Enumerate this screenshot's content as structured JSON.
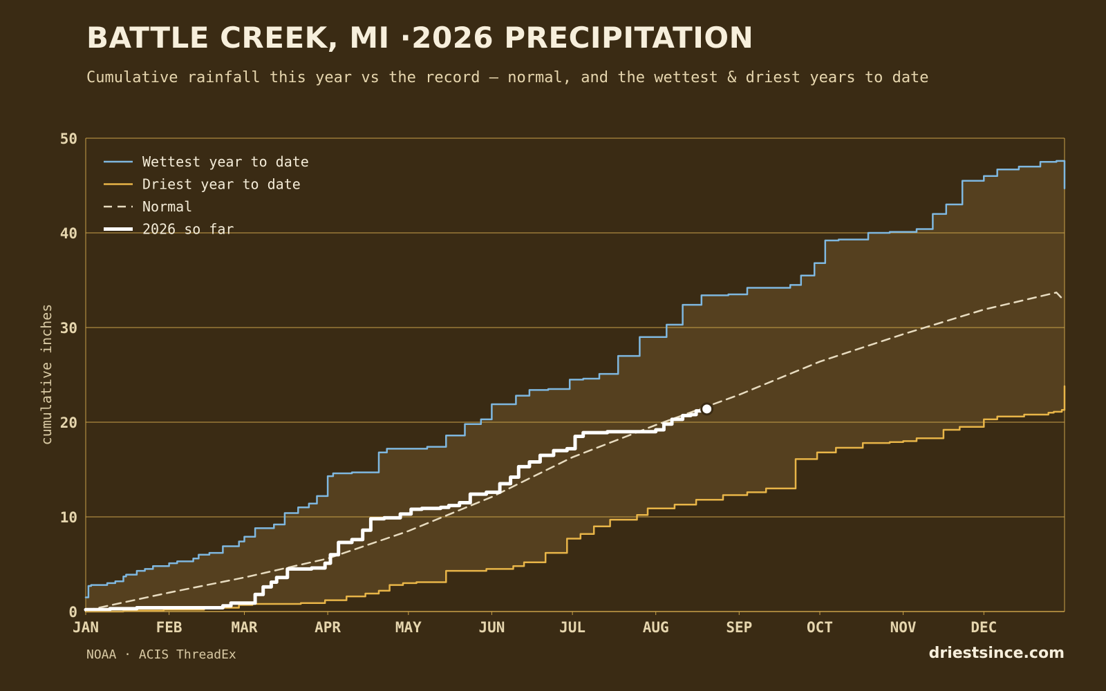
{
  "header": {
    "title": "BATTLE CREEK, MI ·2026 PRECIPITATION",
    "subtitle": "Cumulative rainfall this year vs the record — normal, and the wettest & driest years to date"
  },
  "footer": {
    "source": "NOAA · ACIS ThreadEx",
    "brand": "driestsince.com"
  },
  "colors": {
    "background": "#3a2b14",
    "band_fill": "#55401f",
    "grid": "#c9a24a",
    "wettest": "#7fb8e0",
    "driest": "#e8b548",
    "normal": "#e8dcc0",
    "current": "#ffffff"
  },
  "chart_data": {
    "type": "line",
    "title": "BATTLE CREEK, MI ·2026 PRECIPITATION",
    "ylabel": "cumulative inches",
    "xlabel": "",
    "ylim": [
      0,
      50
    ],
    "xlim": [
      1,
      365
    ],
    "y_ticks": [
      0,
      10,
      20,
      30,
      40,
      50
    ],
    "x_ticks": [
      {
        "label": "JAN",
        "day": 1
      },
      {
        "label": "FEB",
        "day": 32
      },
      {
        "label": "MAR",
        "day": 60
      },
      {
        "label": "APR",
        "day": 91
      },
      {
        "label": "MAY",
        "day": 121
      },
      {
        "label": "JUN",
        "day": 152
      },
      {
        "label": "JUL",
        "day": 182
      },
      {
        "label": "AUG",
        "day": 213
      },
      {
        "label": "SEP",
        "day": 244
      },
      {
        "label": "OCT",
        "day": 274
      },
      {
        "label": "NOV",
        "day": 305
      },
      {
        "label": "DEC",
        "day": 335
      }
    ],
    "grid": true,
    "legend_position": "top-left",
    "band": {
      "between": [
        "Driest year to date",
        "Wettest year to date"
      ],
      "filled": true
    },
    "series": [
      {
        "name": "Wettest year to date",
        "style": "step",
        "x": [
          1,
          2,
          3,
          9,
          12,
          15,
          16,
          20,
          23,
          26,
          32,
          35,
          41,
          43,
          47,
          52,
          58,
          60,
          64,
          71,
          75,
          80,
          84,
          87,
          91,
          93,
          100,
          103,
          106,
          110,
          113,
          121,
          128,
          135,
          142,
          148,
          152,
          161,
          166,
          173,
          181,
          186,
          192,
          199,
          207,
          213,
          217,
          223,
          230,
          240,
          247,
          263,
          267,
          272,
          276,
          281,
          292,
          300,
          310,
          316,
          321,
          327,
          335,
          340,
          348,
          356,
          362,
          364,
          365
        ],
        "y": [
          1.5,
          2.7,
          2.8,
          3.0,
          3.2,
          3.7,
          3.9,
          4.3,
          4.5,
          4.8,
          5.1,
          5.3,
          5.6,
          6.0,
          6.2,
          6.9,
          7.4,
          7.9,
          8.8,
          9.2,
          10.4,
          11.0,
          11.4,
          12.2,
          14.3,
          14.6,
          14.7,
          14.7,
          14.7,
          16.8,
          17.2,
          17.2,
          17.4,
          18.6,
          19.8,
          20.3,
          21.9,
          22.8,
          23.4,
          23.5,
          24.5,
          24.6,
          25.1,
          27.0,
          29.0,
          29.0,
          30.3,
          32.4,
          33.4,
          33.5,
          34.2,
          34.5,
          35.5,
          36.8,
          39.2,
          39.3,
          40.0,
          40.1,
          40.4,
          42.0,
          43.0,
          45.5,
          46.0,
          46.7,
          47.0,
          47.5,
          47.6,
          47.6,
          44.7
        ]
      },
      {
        "name": "Driest year to date",
        "style": "step",
        "x": [
          1,
          15,
          30,
          45,
          58,
          63,
          70,
          81,
          90,
          98,
          105,
          110,
          114,
          119,
          124,
          135,
          150,
          160,
          164,
          172,
          180,
          185,
          190,
          196,
          206,
          210,
          220,
          228,
          238,
          247,
          254,
          265,
          273,
          280,
          290,
          300,
          305,
          310,
          320,
          326,
          335,
          340,
          350,
          359,
          361,
          364,
          365
        ],
        "y": [
          0.0,
          0.1,
          0.2,
          0.4,
          0.7,
          0.8,
          0.8,
          0.9,
          1.2,
          1.6,
          1.9,
          2.2,
          2.8,
          3.0,
          3.1,
          4.3,
          4.5,
          4.8,
          5.2,
          6.2,
          7.7,
          8.2,
          9.0,
          9.7,
          10.2,
          10.9,
          11.3,
          11.8,
          12.3,
          12.6,
          13.0,
          16.1,
          16.8,
          17.3,
          17.8,
          17.9,
          18.0,
          18.3,
          19.2,
          19.5,
          20.3,
          20.6,
          20.8,
          21.0,
          21.1,
          21.3,
          23.8
        ]
      },
      {
        "name": "Normal",
        "style": "dashed",
        "x": [
          1,
          32,
          60,
          91,
          121,
          152,
          182,
          213,
          244,
          274,
          305,
          335,
          362,
          365
        ],
        "y": [
          0.1,
          2.0,
          3.6,
          5.6,
          8.5,
          12.1,
          16.3,
          19.7,
          22.9,
          26.4,
          29.3,
          31.9,
          33.7,
          32.8
        ]
      },
      {
        "name": "2026 so far",
        "style": "step",
        "end_marker": true,
        "x": [
          1,
          10,
          20,
          35,
          48,
          52,
          55,
          60,
          64,
          67,
          70,
          72,
          76,
          80,
          85,
          90,
          92,
          95,
          100,
          104,
          107,
          112,
          118,
          122,
          126,
          133,
          136,
          140,
          144,
          150,
          155,
          159,
          162,
          166,
          170,
          175,
          180,
          183,
          186,
          190,
          195,
          205,
          213,
          216,
          219,
          223,
          226,
          228,
          232
        ],
        "y": [
          0.2,
          0.3,
          0.4,
          0.4,
          0.4,
          0.6,
          0.9,
          0.9,
          1.8,
          2.6,
          3.1,
          3.6,
          4.5,
          4.5,
          4.6,
          5.1,
          6.0,
          7.3,
          7.6,
          8.6,
          9.8,
          9.9,
          10.3,
          10.8,
          10.9,
          11.0,
          11.2,
          11.5,
          12.4,
          12.6,
          13.5,
          14.2,
          15.3,
          15.8,
          16.5,
          17.0,
          17.2,
          18.5,
          18.9,
          18.9,
          19.0,
          19.0,
          19.2,
          19.8,
          20.3,
          20.7,
          20.8,
          21.2,
          21.4
        ]
      }
    ]
  }
}
